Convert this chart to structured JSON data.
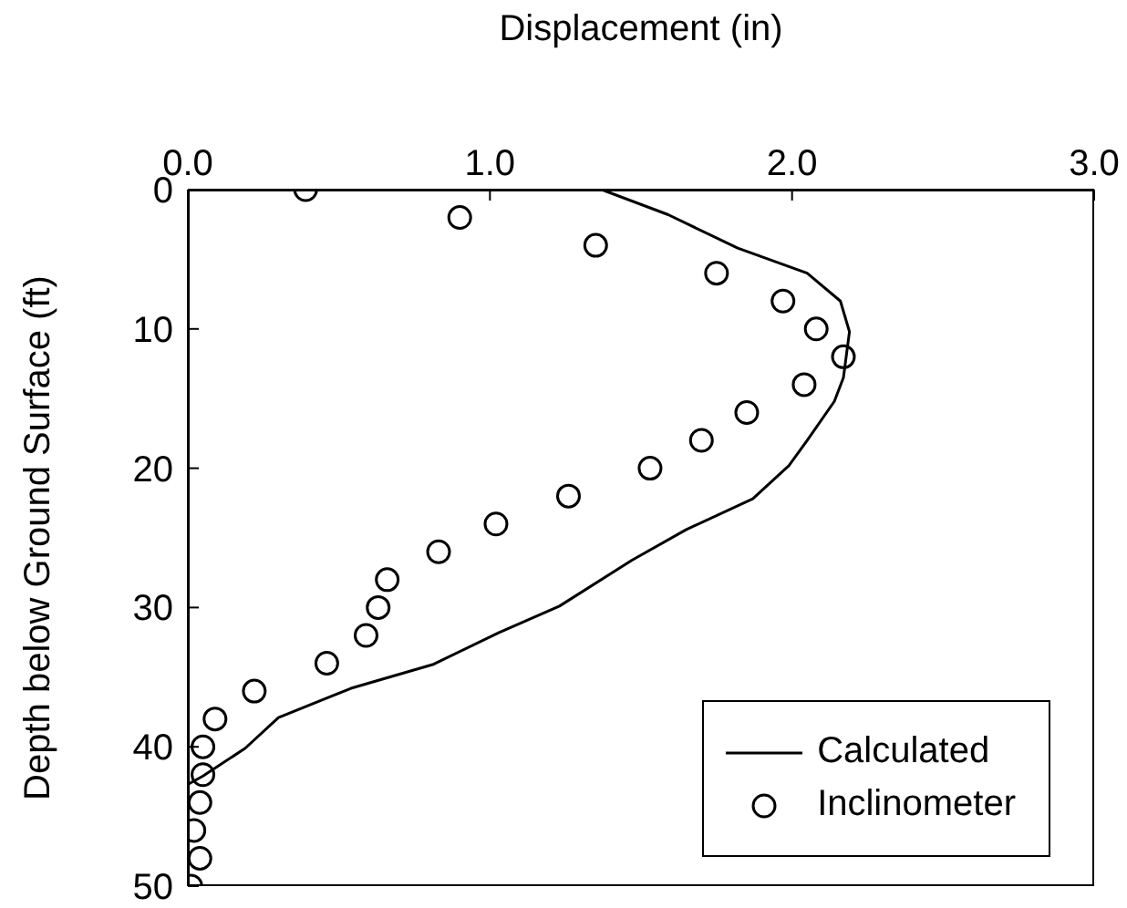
{
  "chart_data": {
    "type": "scatter",
    "xlabel": "Displacement (in)",
    "ylabel": "Depth below Ground Surface (ft)",
    "xlim": [
      0,
      3
    ],
    "xticks": [
      {
        "value": 0,
        "label": "0.0"
      },
      {
        "value": 1,
        "label": "1.0"
      },
      {
        "value": 2,
        "label": "2.0"
      },
      {
        "value": 3,
        "label": "3.0"
      }
    ],
    "ylim": [
      50,
      0
    ],
    "yticks": [
      0,
      10,
      20,
      30,
      40,
      50
    ],
    "grid": false,
    "legend": "bottom right",
    "series": [
      {
        "name": "Calculated",
        "type": "line",
        "color": "#000000",
        "marker": "none",
        "line_style": "solid",
        "x": [
          1.37,
          1.59,
          1.82,
          2.05,
          2.16,
          2.19,
          2.17,
          2.14,
          2.05,
          1.99,
          1.87,
          1.65,
          1.47,
          1.23,
          1.03,
          0.81,
          0.54,
          0.3,
          0.19,
          0.05,
          0,
          0
        ],
        "values": [
          0,
          1.8,
          4.2,
          6,
          8,
          10.2,
          13.5,
          15.2,
          18,
          19.8,
          22.2,
          24.4,
          26.6,
          29.9,
          31.8,
          34.1,
          35.8,
          37.9,
          40.1,
          42.1,
          42.7,
          50
        ]
      },
      {
        "name": "Inclinometer",
        "type": "scatter",
        "color": "#000000",
        "marker": "circle",
        "x": [
          0.39,
          0.9,
          1.35,
          1.75,
          1.97,
          2.08,
          2.17,
          2.04,
          1.85,
          1.7,
          1.53,
          1.26,
          1.02,
          0.83,
          0.66,
          0.63,
          0.59,
          0.46,
          0.22,
          0.09,
          0.05,
          0.05,
          0.04,
          0.02,
          0.04,
          0.01
        ],
        "values": [
          0,
          2,
          4,
          6,
          8,
          10,
          12,
          14,
          16,
          18,
          20,
          22,
          24,
          26,
          28,
          30,
          32,
          34,
          36,
          38,
          40,
          42,
          44,
          46,
          48,
          50
        ]
      }
    ]
  }
}
